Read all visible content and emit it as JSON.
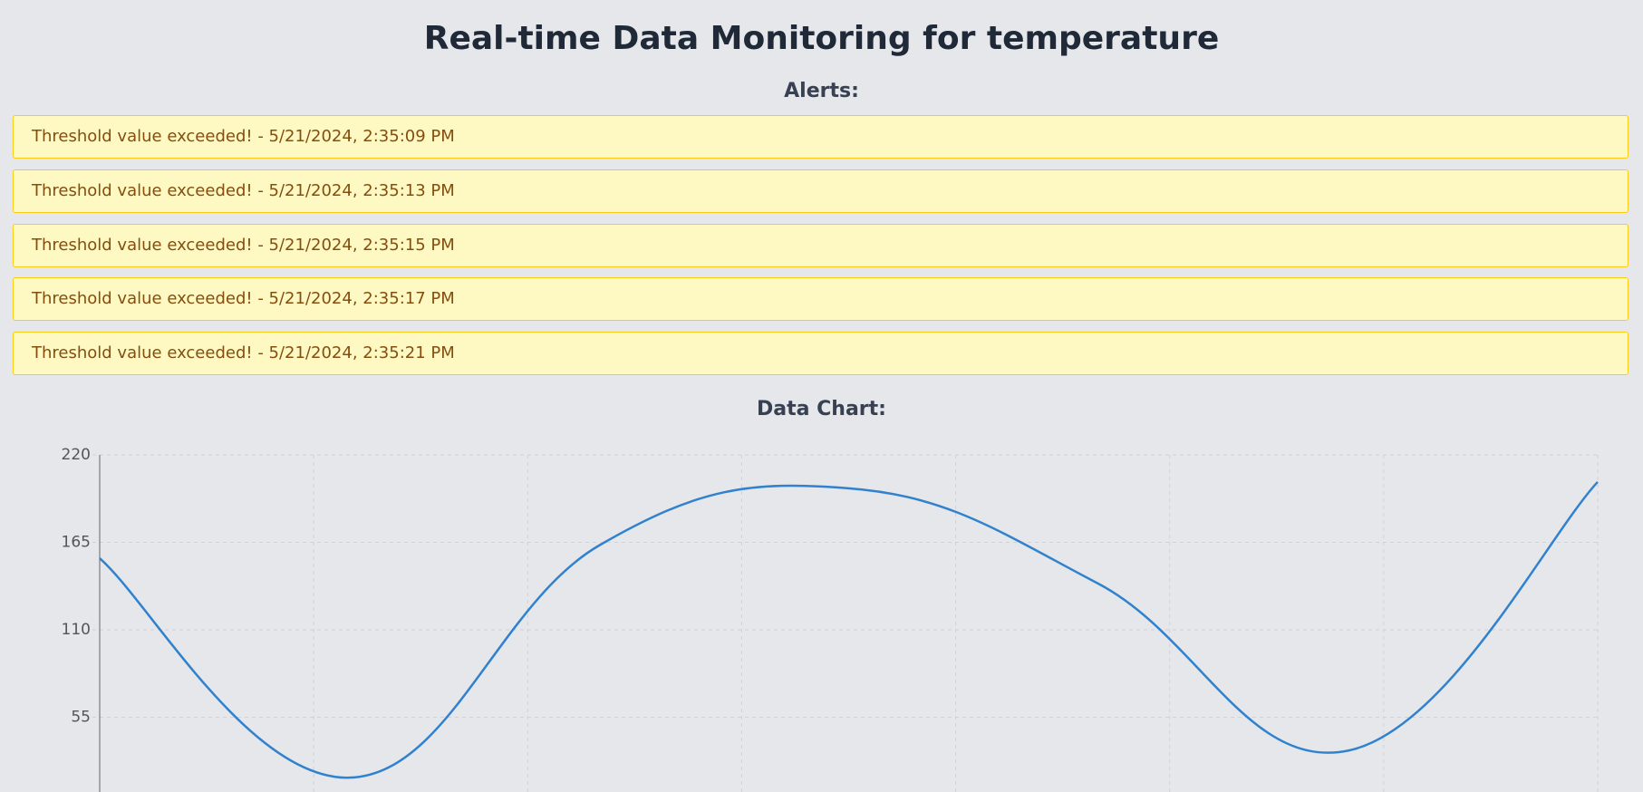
{
  "header": {
    "title": "Real-time Data Monitoring for temperature"
  },
  "alerts": {
    "heading": "Alerts:",
    "items": [
      "Threshold value exceeded! - 5/21/2024, 2:35:09 PM",
      "Threshold value exceeded! - 5/21/2024, 2:35:13 PM",
      "Threshold value exceeded! - 5/21/2024, 2:35:15 PM",
      "Threshold value exceeded! - 5/21/2024, 2:35:17 PM",
      "Threshold value exceeded! - 5/21/2024, 2:35:21 PM"
    ]
  },
  "chart_heading": "Data Chart:",
  "chart_data": {
    "type": "line",
    "values": [
      155,
      17,
      163,
      199,
      139,
      34,
      203
    ],
    "color": "#3182ce",
    "ylim": [
      0,
      220
    ],
    "yticks": [
      55,
      110,
      165,
      220
    ],
    "grid": true
  }
}
